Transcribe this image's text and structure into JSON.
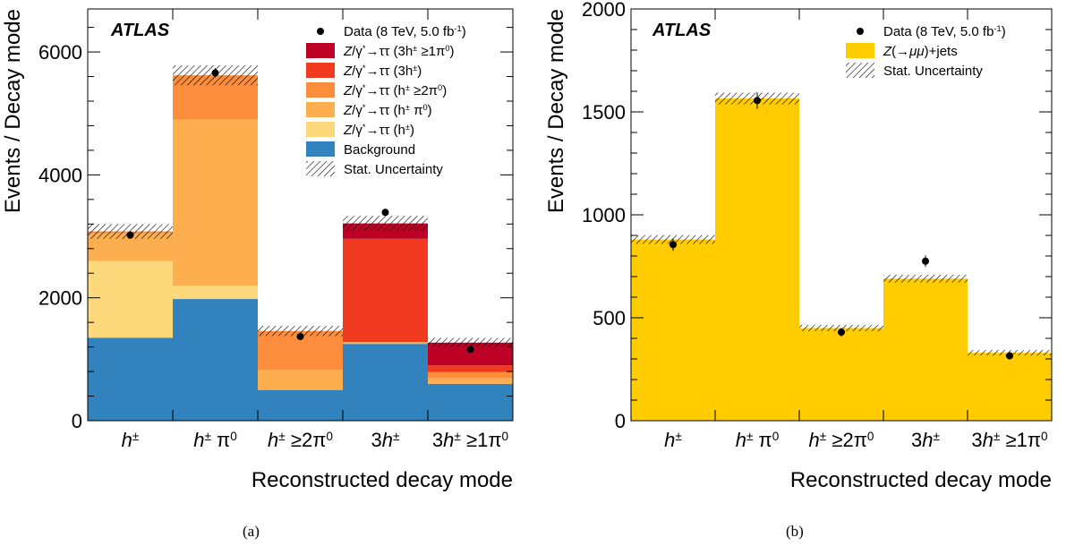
{
  "captions": [
    "(a)",
    "(b)"
  ],
  "chart_data": [
    {
      "type": "bar",
      "stacked": true,
      "experiment_label": "ATLAS",
      "xlabel": "Reconstructed decay mode",
      "ylabel": "Events / Decay mode",
      "ylim": [
        0,
        6700
      ],
      "yticks": [
        0,
        2000,
        4000,
        6000
      ],
      "categories": [
        {
          "base": "h",
          "sup": "±",
          "tail": ""
        },
        {
          "base": "h",
          "sup": "±",
          "tail": " π",
          "sup2": "0"
        },
        {
          "base": "h",
          "sup": "±",
          "tail": " ≥2π",
          "sup2": "0"
        },
        {
          "pre": "3",
          "base": "h",
          "sup": "±",
          "tail": ""
        },
        {
          "pre": "3",
          "base": "h",
          "sup": "±",
          "tail": " ≥1π",
          "sup2": "0"
        }
      ],
      "series": [
        {
          "name": "Background",
          "color": "#3182bd",
          "values": [
            1350,
            1980,
            500,
            1250,
            600
          ]
        },
        {
          "name": "Z/γ*→ττ (h±)",
          "color": "#fdd97c",
          "values": [
            1250,
            220,
            0,
            0,
            0
          ]
        },
        {
          "name": "Z/γ*→ττ (h± π0)",
          "color": "#fdae4e",
          "values": [
            450,
            2700,
            330,
            30,
            90
          ]
        },
        {
          "name": "Z/γ*→ττ (h± ≥2π0)",
          "color": "#fc8d3c",
          "values": [
            30,
            720,
            630,
            0,
            100
          ]
        },
        {
          "name": "Z/γ*→ττ (3h±)",
          "color": "#f03b20",
          "values": [
            0,
            0,
            0,
            1680,
            110
          ]
        },
        {
          "name": "Z/γ*→ττ (3h± ≥1π0)",
          "color": "#bd0026",
          "values": [
            0,
            0,
            0,
            250,
            370
          ]
        }
      ],
      "data_points": [
        3020,
        5660,
        1370,
        3390,
        1160
      ],
      "legend_entries": [
        {
          "kind": "marker",
          "text": "Data (8 TeV, 5.0 fb",
          "sup": "-1",
          "tail": ")"
        },
        {
          "kind": "fill",
          "color": "#bd0026",
          "pre": "Z/γ",
          "sup1": "*",
          "mid": "→ττ (3h",
          "sup2": "±",
          "mid2": " ≥1π",
          "sup3": "0",
          "tail": ")"
        },
        {
          "kind": "fill",
          "color": "#f03b20",
          "pre": "Z/γ",
          "sup1": "*",
          "mid": "→ττ (3h",
          "sup2": "±",
          "tail": ")"
        },
        {
          "kind": "fill",
          "color": "#fc8d3c",
          "pre": "Z/γ",
          "sup1": "*",
          "mid": "→ττ (h",
          "sup2": "±",
          "mid2": " ≥2π",
          "sup3": "0",
          "tail": ")"
        },
        {
          "kind": "fill",
          "color": "#fdae4e",
          "pre": "Z/γ",
          "sup1": "*",
          "mid": "→ττ (h",
          "sup2": "±",
          "mid2": " π",
          "sup3": "0",
          "tail": ")"
        },
        {
          "kind": "fill",
          "color": "#fdd97c",
          "pre": "Z/γ",
          "sup1": "*",
          "mid": "→ττ (h",
          "sup2": "±",
          "tail": ")"
        },
        {
          "kind": "fill",
          "color": "#3182bd",
          "text": "Background"
        },
        {
          "kind": "hatch",
          "text": "Stat. Uncertainty"
        }
      ]
    },
    {
      "type": "bar",
      "stacked": false,
      "experiment_label": "ATLAS",
      "xlabel": "Reconstructed decay mode",
      "ylabel": "Events / Decay mode",
      "ylim": [
        0,
        2000
      ],
      "yticks": [
        0,
        500,
        1000,
        1500,
        2000
      ],
      "categories": [
        {
          "base": "h",
          "sup": "±",
          "tail": ""
        },
        {
          "base": "h",
          "sup": "±",
          "tail": " π",
          "sup2": "0"
        },
        {
          "base": "h",
          "sup": "±",
          "tail": " ≥2π",
          "sup2": "0"
        },
        {
          "pre": "3",
          "base": "h",
          "sup": "±",
          "tail": ""
        },
        {
          "pre": "3",
          "base": "h",
          "sup": "±",
          "tail": " ≥1π",
          "sup2": "0"
        }
      ],
      "series": [
        {
          "name": "Z(→μμ)+jets",
          "color": "#ffcc00",
          "values": [
            880,
            1565,
            450,
            690,
            330
          ]
        }
      ],
      "data_points": [
        855,
        1555,
        430,
        775,
        315
      ],
      "legend_entries": [
        {
          "kind": "marker",
          "text": "Data (8 TeV, 5.0 fb",
          "sup": "-1",
          "tail": ")"
        },
        {
          "kind": "fill",
          "color": "#ffcc00",
          "text": "Z(→μμ)+jets"
        },
        {
          "kind": "hatch",
          "text": "Stat. Uncertainty"
        }
      ]
    }
  ]
}
